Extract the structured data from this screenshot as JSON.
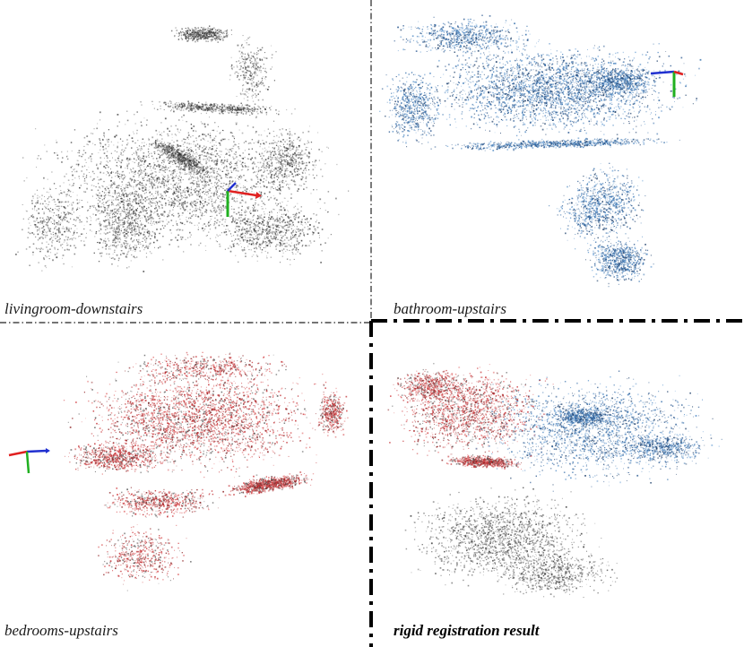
{
  "panels": [
    {
      "id": "livingroom",
      "caption": "livingroom-downstairs",
      "color": "#3a3a3a"
    },
    {
      "id": "bathroom",
      "caption": "bathroom-upstairs",
      "color": "#2f6aa8"
    },
    {
      "id": "bedrooms",
      "caption": "bedrooms-upstairs",
      "color": "#d0363a"
    },
    {
      "id": "registration",
      "caption": "rigid registration result",
      "color": "mixed"
    }
  ],
  "axis_colors": {
    "x": "#e02020",
    "y": "#20b020",
    "z": "#2030d0"
  }
}
